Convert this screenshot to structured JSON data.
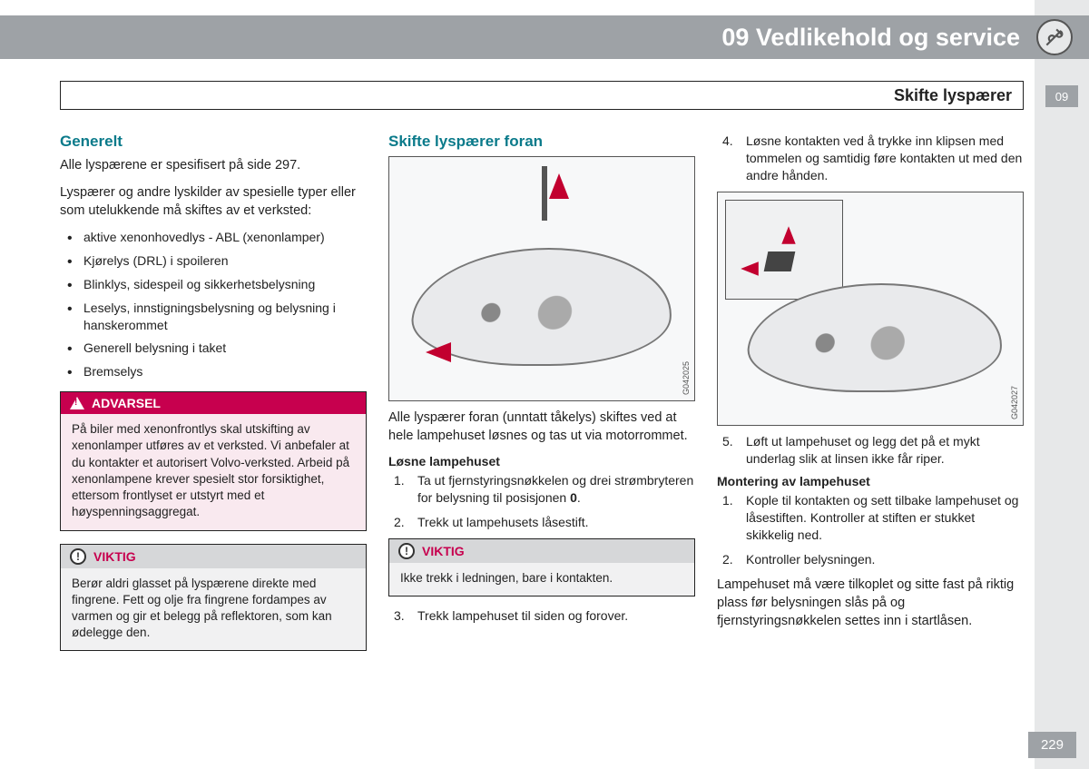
{
  "header": {
    "title": "09 Vedlikehold og service",
    "icon_name": "wrench-screwdriver-icon"
  },
  "side_tab": "09",
  "section_title": "Skifte lyspærer",
  "page_number": "229",
  "colors": {
    "header_bg": "#9ea2a6",
    "accent_teal": "#0a7a8a",
    "warning_magenta": "#c7004e",
    "warning_body_bg": "#f9e9ef",
    "note_header_bg": "#d6d7d9",
    "note_body_bg": "#f1f1f2",
    "arrow_red": "#c2002f",
    "side_strip": "#e7e8e9"
  },
  "col1": {
    "heading": "Generelt",
    "p1": "Alle lyspærene er spesifisert på side 297.",
    "p2": "Lyspærer og andre lyskilder av spesielle typer eller som utelukkende må skiftes av et verksted:",
    "bullets": [
      "aktive xenonhovedlys - ABL (xenonlamper)",
      "Kjørelys (DRL) i spoileren",
      "Blinklys, sidespeil og sikkerhetsbelysning",
      "Leselys, innstigningsbelysning og belysning i hanskerommet",
      "Generell belysning i taket",
      "Bremselys"
    ],
    "warning": {
      "title": "ADVARSEL",
      "body": "På biler med xenonfrontlys skal utskifting av xenonlamper utføres av et verksted. Vi anbefaler at du kontakter et autorisert Volvo-verksted. Arbeid på xenonlampene krever spesielt stor forsiktighet, ettersom frontlyset er utstyrt med et høyspenningsaggregat."
    },
    "note": {
      "title": "VIKTIG",
      "body": "Berør aldri glasset på lyspærene direkte med fingrene. Fett og olje fra fingrene fordampes av varmen og gir et belegg på reflektoren, som kan ødelegge den."
    }
  },
  "col2": {
    "heading": "Skifte lyspærer foran",
    "figure_id": "G042025",
    "caption": "Alle lyspærer foran (unntatt tåkelys) skiftes ved at hele lampehuset løsnes og tas ut via motorrommet.",
    "sub1": "Løsne lampehuset",
    "steps_a": [
      "Ta ut fjernstyringsnøkkelen og drei strømbryteren for belysning til posisjonen 0.",
      "Trekk ut lampehusets låsestift."
    ],
    "note": {
      "title": "VIKTIG",
      "body": "Ikke trekk i ledningen, bare i kontakten."
    },
    "steps_b": [
      "Trekk lampehuset til siden og forover."
    ]
  },
  "col3": {
    "steps_c": [
      "Løsne kontakten ved å trykke inn klipsen med tommelen og samtidig føre kontakten ut med den andre hånden."
    ],
    "figure_id": "G042027",
    "steps_d": [
      "Løft ut lampehuset og legg det på et mykt underlag slik at linsen ikke får riper."
    ],
    "sub2": "Montering av lampehuset",
    "steps_e": [
      "Kople til kontakten og sett tilbake lampehuset og låsestiften. Kontroller at stiften er stukket skikkelig ned.",
      "Kontroller belysningen."
    ],
    "p_end": "Lampehuset må være tilkoplet og sitte fast på riktig plass før belysningen slås på og fjernstyringsnøkkelen settes inn i startlåsen."
  }
}
